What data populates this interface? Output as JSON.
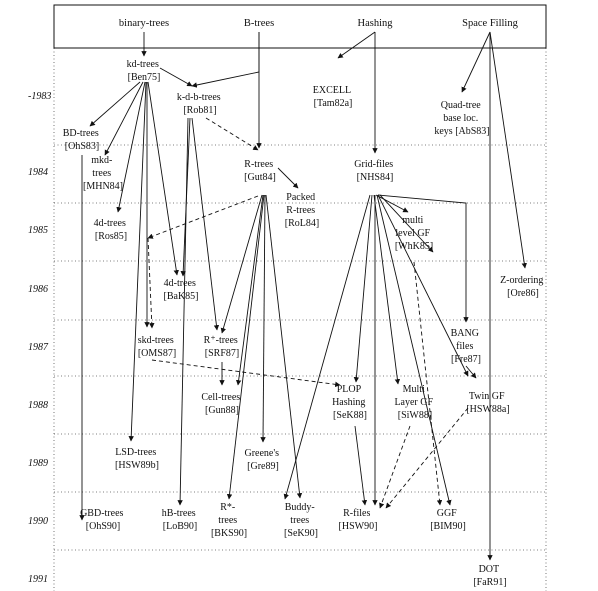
{
  "header": {
    "categories": [
      "binary-trees",
      "B-trees",
      "Hashing",
      "Space Filling"
    ]
  },
  "years": [
    "-1983",
    "1984",
    "1985",
    "1986",
    "1987",
    "1988",
    "1989",
    "1990",
    "1991"
  ],
  "nodes": {
    "kd_trees": [
      "kd-trees",
      "[Ben75]"
    ],
    "kdb_trees": [
      "k-d-b-trees",
      "[Rob81]"
    ],
    "excell": [
      "EXCELL",
      "[Tam82a]"
    ],
    "quad_tree": [
      "Quad-tree",
      "base loc.",
      "keys [AbS83]"
    ],
    "bd_trees": [
      "BD-trees",
      "[OhS83]"
    ],
    "mkd_trees": [
      "mkd-",
      "trees",
      "[MHN84]"
    ],
    "r_trees": [
      "R-trees",
      "[Gut84]"
    ],
    "packed_r_trees": [
      "Packed",
      "R-trees",
      "[RoL84]"
    ],
    "grid_files": [
      "Grid-files",
      "[NHS84]"
    ],
    "four_d_trees": [
      "4d-trees",
      "[Ros85]"
    ],
    "multi_level_gf": [
      "multi",
      "level GF",
      "[WhK85]"
    ],
    "z_ordering": [
      "Z-ordering",
      "[Ore86]"
    ],
    "four_d_trees_bak": [
      "4d-trees",
      "[BaK85]"
    ],
    "skd_trees": [
      "skd-trees",
      "[OMS87]"
    ],
    "r_plus_trees": [
      "R⁺-trees",
      "[SRF87]"
    ],
    "bang_files": [
      "BANG",
      "files",
      "[Fre87]"
    ],
    "cell_trees": [
      "Cell-trees",
      "[Gun88]"
    ],
    "plop_hashing": [
      "PLOP",
      "Hashing",
      "[SeK88]"
    ],
    "multi_layer_gf": [
      "Multi",
      "Layer GF",
      "[SiW88]"
    ],
    "twin_gf": [
      "Twin GF",
      "[HSW88a]"
    ],
    "lsd_trees": [
      "LSD-trees",
      "[HSW89b]"
    ],
    "greenes": [
      "Greene's",
      "[Gre89]"
    ],
    "gbd_trees": [
      "GBD-trees",
      "[OhS90]"
    ],
    "hb_trees": [
      "hB-trees",
      "[LoB90]"
    ],
    "r_star_trees": [
      "R*-",
      "trees",
      "[BKS90]"
    ],
    "buddy_trees": [
      "Buddy-",
      "trees",
      "[SeK90]"
    ],
    "r_files": [
      "R-files",
      "[HSW90]"
    ],
    "ggf": [
      "GGF",
      "[BIM90]"
    ],
    "dot": [
      "DOT",
      "[FaR91]"
    ]
  }
}
